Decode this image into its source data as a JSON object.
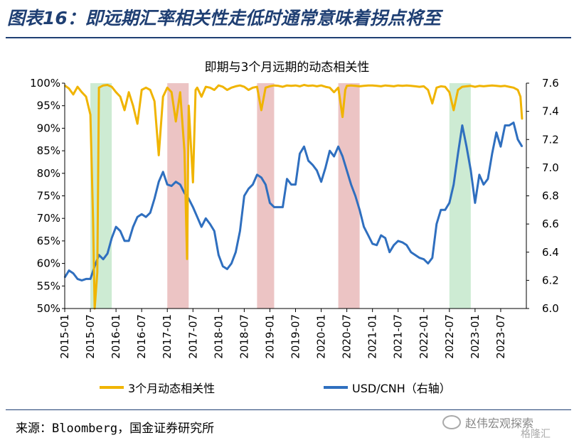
{
  "figure_title": "图表16：即远期汇率相关性走低时通常意味着拐点将至",
  "source": "来源：Bloomberg，国金证券研究所",
  "watermark": "赵伟宏观探索",
  "watermark_sub": "格隆汇",
  "chart_data": {
    "type": "line",
    "title": "即期与3个月远期的动态相关性",
    "left_axis": {
      "min": 50,
      "max": 100,
      "step": 5,
      "unit": "%",
      "ticks": [
        "100%",
        "95%",
        "90%",
        "85%",
        "80%",
        "75%",
        "70%",
        "65%",
        "60%",
        "55%",
        "50%"
      ]
    },
    "right_axis": {
      "min": 6.0,
      "max": 7.6,
      "step": 0.2,
      "ticks": [
        "7.6",
        "7.4",
        "7.2",
        "7.0",
        "6.8",
        "6.6",
        "6.4",
        "6.2",
        "6.0"
      ]
    },
    "x_range": [
      "2015-01",
      "2023-12"
    ],
    "x_ticks": [
      "2015-01",
      "2015-07",
      "2016-01",
      "2016-07",
      "2017-01",
      "2017-07",
      "2018-01",
      "2018-07",
      "2019-01",
      "2019-07",
      "2020-01",
      "2020-07",
      "2021-01",
      "2021-07",
      "2022-01",
      "2022-07",
      "2023-01",
      "2023-07"
    ],
    "shaded_periods": [
      {
        "start": "2015-07",
        "end": "2015-12",
        "color": "#cdebd3"
      },
      {
        "start": "2017-01",
        "end": "2017-06",
        "color": "#ecc4c4"
      },
      {
        "start": "2018-10",
        "end": "2019-02",
        "color": "#ecc4c4"
      },
      {
        "start": "2020-05",
        "end": "2020-10",
        "color": "#ecc4c4"
      },
      {
        "start": "2022-07",
        "end": "2022-12",
        "color": "#cdebd3"
      }
    ],
    "series": [
      {
        "name": "3个月动态相关性",
        "axis": "left",
        "color": "#f0b400",
        "points": [
          [
            "2015-01",
            99.5
          ],
          [
            "2015-02",
            98.8
          ],
          [
            "2015-03",
            97.5
          ],
          [
            "2015-04",
            99.2
          ],
          [
            "2015-05",
            98.0
          ],
          [
            "2015-06",
            97.0
          ],
          [
            "2015-07",
            93.0
          ],
          [
            "2015-07-20",
            70.0
          ],
          [
            "2015-08",
            50.0
          ],
          [
            "2015-08-20",
            58.0
          ],
          [
            "2015-09",
            99.0
          ],
          [
            "2015-10",
            99.5
          ],
          [
            "2015-11",
            99.6
          ],
          [
            "2015-12",
            99.2
          ],
          [
            "2016-01",
            98.0
          ],
          [
            "2016-02",
            97.0
          ],
          [
            "2016-03",
            94.0
          ],
          [
            "2016-04",
            98.0
          ],
          [
            "2016-05",
            95.0
          ],
          [
            "2016-06",
            91.0
          ],
          [
            "2016-07",
            98.5
          ],
          [
            "2016-08",
            99.0
          ],
          [
            "2016-09",
            98.5
          ],
          [
            "2016-10",
            96.0
          ],
          [
            "2016-11",
            84.0
          ],
          [
            "2016-12",
            97.0
          ],
          [
            "2017-01",
            99.0
          ],
          [
            "2017-02",
            98.0
          ],
          [
            "2017-03",
            91.5
          ],
          [
            "2017-04",
            98.0
          ],
          [
            "2017-05",
            85.0
          ],
          [
            "2017-05-20",
            61.0
          ],
          [
            "2017-06",
            95.0
          ],
          [
            "2017-07",
            78.0
          ],
          [
            "2017-07-20",
            98.5
          ],
          [
            "2017-08",
            99.0
          ],
          [
            "2017-09",
            97.0
          ],
          [
            "2017-10",
            99.2
          ],
          [
            "2017-11",
            99.0
          ],
          [
            "2017-12",
            98.5
          ],
          [
            "2018-01",
            99.5
          ],
          [
            "2018-02",
            99.2
          ],
          [
            "2018-03",
            98.5
          ],
          [
            "2018-04",
            99.0
          ],
          [
            "2018-05",
            99.3
          ],
          [
            "2018-06",
            99.5
          ],
          [
            "2018-07",
            99.2
          ],
          [
            "2018-08",
            98.5
          ],
          [
            "2018-09",
            99.0
          ],
          [
            "2018-10",
            99.2
          ],
          [
            "2018-11",
            94.0
          ],
          [
            "2018-12",
            99.0
          ],
          [
            "2019-01",
            99.3
          ],
          [
            "2019-02",
            99.5
          ],
          [
            "2019-03",
            99.4
          ],
          [
            "2019-04",
            99.2
          ],
          [
            "2019-05",
            99.5
          ],
          [
            "2019-06",
            99.4
          ],
          [
            "2019-07",
            99.5
          ],
          [
            "2019-08",
            99.3
          ],
          [
            "2019-09",
            99.6
          ],
          [
            "2019-10",
            99.4
          ],
          [
            "2019-11",
            99.5
          ],
          [
            "2019-12",
            99.3
          ],
          [
            "2020-01",
            99.5
          ],
          [
            "2020-02",
            99.2
          ],
          [
            "2020-03",
            99.0
          ],
          [
            "2020-04",
            98.0
          ],
          [
            "2020-05",
            99.0
          ],
          [
            "2020-06",
            92.5
          ],
          [
            "2020-06-20",
            98.5
          ],
          [
            "2020-07",
            99.4
          ],
          [
            "2020-08",
            99.5
          ],
          [
            "2020-09",
            99.4
          ],
          [
            "2020-10",
            99.3
          ],
          [
            "2020-11",
            99.4
          ],
          [
            "2020-12",
            99.5
          ],
          [
            "2021-01",
            99.5
          ],
          [
            "2021-02",
            99.4
          ],
          [
            "2021-03",
            99.3
          ],
          [
            "2021-04",
            99.5
          ],
          [
            "2021-05",
            99.4
          ],
          [
            "2021-06",
            99.3
          ],
          [
            "2021-07",
            99.5
          ],
          [
            "2021-08",
            99.4
          ],
          [
            "2021-09",
            99.5
          ],
          [
            "2021-10",
            99.4
          ],
          [
            "2021-11",
            99.3
          ],
          [
            "2021-12",
            99.2
          ],
          [
            "2022-01",
            99.3
          ],
          [
            "2022-02",
            98.5
          ],
          [
            "2022-03",
            95.5
          ],
          [
            "2022-04",
            99.0
          ],
          [
            "2022-05",
            99.3
          ],
          [
            "2022-06",
            99.2
          ],
          [
            "2022-07",
            98.0
          ],
          [
            "2022-08",
            94.0
          ],
          [
            "2022-09",
            98.5
          ],
          [
            "2022-10",
            99.2
          ],
          [
            "2022-11",
            99.3
          ],
          [
            "2022-12",
            99.4
          ],
          [
            "2023-01",
            99.2
          ],
          [
            "2023-02",
            99.4
          ],
          [
            "2023-03",
            99.3
          ],
          [
            "2023-04",
            99.4
          ],
          [
            "2023-05",
            99.5
          ],
          [
            "2023-06",
            99.4
          ],
          [
            "2023-07",
            99.3
          ],
          [
            "2023-08",
            99.4
          ],
          [
            "2023-09",
            99.2
          ],
          [
            "2023-10",
            99.0
          ],
          [
            "2023-11",
            98.5
          ],
          [
            "2023-11-20",
            97.0
          ],
          [
            "2023-12",
            92.0
          ]
        ]
      },
      {
        "name": "USD/CNH（右轴）",
        "axis": "right",
        "color": "#2f6fbf",
        "points": [
          [
            "2015-01",
            6.22
          ],
          [
            "2015-02",
            6.27
          ],
          [
            "2015-03",
            6.25
          ],
          [
            "2015-04",
            6.21
          ],
          [
            "2015-05",
            6.2
          ],
          [
            "2015-06",
            6.21
          ],
          [
            "2015-07",
            6.21
          ],
          [
            "2015-08",
            6.3
          ],
          [
            "2015-09",
            6.38
          ],
          [
            "2015-10",
            6.35
          ],
          [
            "2015-11",
            6.39
          ],
          [
            "2015-12",
            6.5
          ],
          [
            "2016-01",
            6.58
          ],
          [
            "2016-02",
            6.55
          ],
          [
            "2016-03",
            6.48
          ],
          [
            "2016-04",
            6.48
          ],
          [
            "2016-05",
            6.58
          ],
          [
            "2016-06",
            6.65
          ],
          [
            "2016-07",
            6.67
          ],
          [
            "2016-08",
            6.65
          ],
          [
            "2016-09",
            6.68
          ],
          [
            "2016-10",
            6.78
          ],
          [
            "2016-11",
            6.9
          ],
          [
            "2016-12",
            6.97
          ],
          [
            "2017-01",
            6.88
          ],
          [
            "2017-02",
            6.87
          ],
          [
            "2017-03",
            6.9
          ],
          [
            "2017-04",
            6.88
          ],
          [
            "2017-05",
            6.82
          ],
          [
            "2017-06",
            6.78
          ],
          [
            "2017-07",
            6.72
          ],
          [
            "2017-08",
            6.65
          ],
          [
            "2017-09",
            6.58
          ],
          [
            "2017-10",
            6.64
          ],
          [
            "2017-11",
            6.6
          ],
          [
            "2017-12",
            6.55
          ],
          [
            "2018-01",
            6.38
          ],
          [
            "2018-02",
            6.3
          ],
          [
            "2018-03",
            6.28
          ],
          [
            "2018-04",
            6.32
          ],
          [
            "2018-05",
            6.4
          ],
          [
            "2018-06",
            6.55
          ],
          [
            "2018-07",
            6.8
          ],
          [
            "2018-08",
            6.85
          ],
          [
            "2018-09",
            6.88
          ],
          [
            "2018-10",
            6.95
          ],
          [
            "2018-11",
            6.93
          ],
          [
            "2018-12",
            6.88
          ],
          [
            "2019-01",
            6.75
          ],
          [
            "2019-02",
            6.72
          ],
          [
            "2019-03",
            6.72
          ],
          [
            "2019-04",
            6.72
          ],
          [
            "2019-05",
            6.92
          ],
          [
            "2019-06",
            6.88
          ],
          [
            "2019-07",
            6.88
          ],
          [
            "2019-08",
            7.1
          ],
          [
            "2019-09",
            7.15
          ],
          [
            "2019-10",
            7.05
          ],
          [
            "2019-11",
            7.02
          ],
          [
            "2019-12",
            6.98
          ],
          [
            "2020-01",
            6.9
          ],
          [
            "2020-02",
            7.0
          ],
          [
            "2020-03",
            7.12
          ],
          [
            "2020-04",
            7.08
          ],
          [
            "2020-05",
            7.15
          ],
          [
            "2020-06",
            7.08
          ],
          [
            "2020-07",
            6.98
          ],
          [
            "2020-08",
            6.88
          ],
          [
            "2020-09",
            6.8
          ],
          [
            "2020-10",
            6.7
          ],
          [
            "2020-11",
            6.58
          ],
          [
            "2020-12",
            6.52
          ],
          [
            "2021-01",
            6.46
          ],
          [
            "2021-02",
            6.45
          ],
          [
            "2021-03",
            6.52
          ],
          [
            "2021-04",
            6.5
          ],
          [
            "2021-05",
            6.4
          ],
          [
            "2021-06",
            6.45
          ],
          [
            "2021-07",
            6.48
          ],
          [
            "2021-08",
            6.47
          ],
          [
            "2021-09",
            6.45
          ],
          [
            "2021-10",
            6.4
          ],
          [
            "2021-11",
            6.38
          ],
          [
            "2021-12",
            6.36
          ],
          [
            "2022-01",
            6.35
          ],
          [
            "2022-02",
            6.32
          ],
          [
            "2022-03",
            6.36
          ],
          [
            "2022-04",
            6.6
          ],
          [
            "2022-05",
            6.7
          ],
          [
            "2022-06",
            6.7
          ],
          [
            "2022-07",
            6.75
          ],
          [
            "2022-08",
            6.88
          ],
          [
            "2022-09",
            7.1
          ],
          [
            "2022-10",
            7.3
          ],
          [
            "2022-11",
            7.15
          ],
          [
            "2022-12",
            6.98
          ],
          [
            "2023-01",
            6.75
          ],
          [
            "2023-02",
            6.95
          ],
          [
            "2023-03",
            6.88
          ],
          [
            "2023-04",
            6.92
          ],
          [
            "2023-05",
            7.1
          ],
          [
            "2023-06",
            7.25
          ],
          [
            "2023-07",
            7.15
          ],
          [
            "2023-08",
            7.3
          ],
          [
            "2023-09",
            7.3
          ],
          [
            "2023-10",
            7.32
          ],
          [
            "2023-11",
            7.2
          ],
          [
            "2023-12",
            7.15
          ]
        ]
      }
    ],
    "legend_position": "bottom",
    "grid": false
  }
}
